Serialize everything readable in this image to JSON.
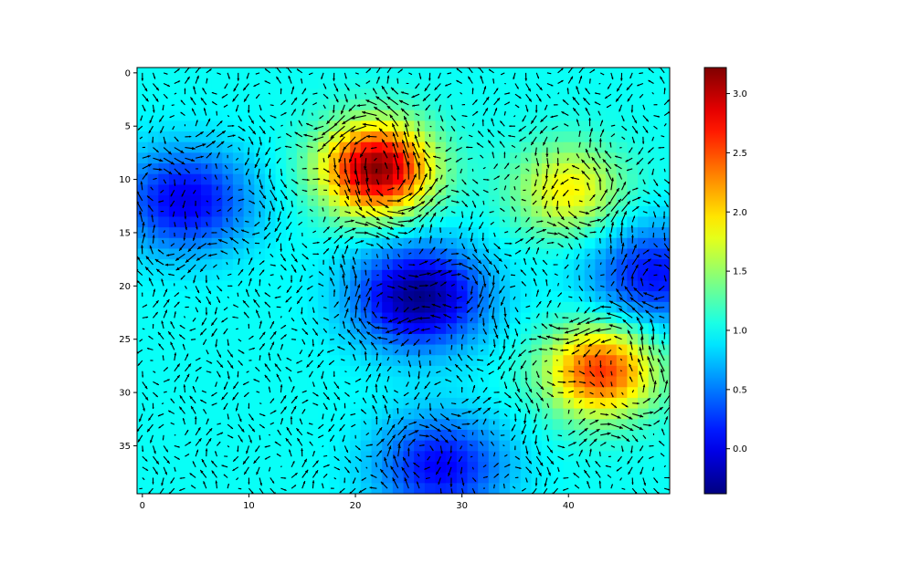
{
  "chart_data": {
    "type": "heatmap",
    "subtype": "image-with-quiver-overlay",
    "title": "",
    "xlabel": "",
    "ylabel": "",
    "grid_shape": [
      40,
      50
    ],
    "xlim": [
      -0.5,
      49.5
    ],
    "ylim": [
      39.5,
      -0.5
    ],
    "y_inverted": true,
    "x_ticks": [
      0,
      10,
      20,
      30,
      40
    ],
    "y_ticks": [
      0,
      5,
      10,
      15,
      20,
      25,
      30,
      35
    ],
    "colormap": "jet",
    "vmin": -0.38,
    "vmax": 3.22,
    "colorbar": {
      "ticks": [
        0.0,
        0.5,
        1.0,
        1.5,
        2.0,
        2.5,
        3.0
      ],
      "tick_labels": [
        "0.0",
        "0.5",
        "1.0",
        "1.5",
        "2.0",
        "2.5",
        "3.0"
      ],
      "placement": "right"
    },
    "field_features": [
      {
        "kind": "peak",
        "row": 9,
        "col": 22,
        "value": 3.2
      },
      {
        "kind": "peak",
        "row": 28,
        "col": 43,
        "value": 2.6
      },
      {
        "kind": "peak",
        "row": 11,
        "col": 40,
        "value": 1.9
      },
      {
        "kind": "trough",
        "row": 21,
        "col": 26,
        "value": -0.35
      },
      {
        "kind": "trough",
        "row": 12,
        "col": 4,
        "value": 0.0
      },
      {
        "kind": "trough",
        "row": 37,
        "col": 28,
        "value": 0.05
      },
      {
        "kind": "trough",
        "row": 19,
        "col": 48,
        "value": 0.1
      }
    ],
    "arrow_color": "#000000",
    "grid": false
  }
}
